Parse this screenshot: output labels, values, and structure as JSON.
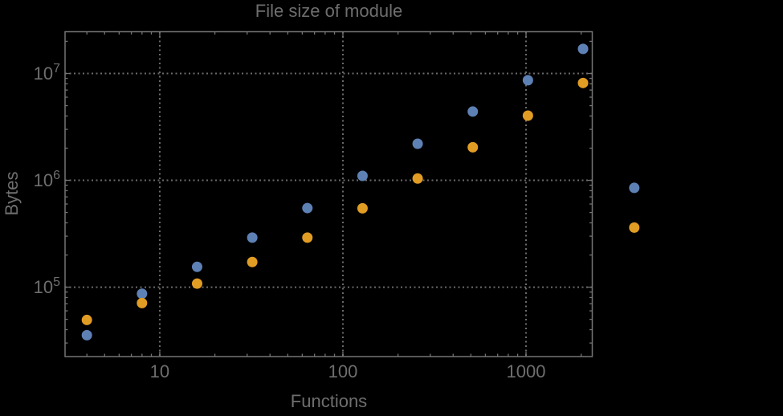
{
  "title": "File size of module",
  "x_axis_label": "Functions",
  "y_axis_label": "Bytes",
  "colors": {
    "background": "#000000",
    "frame": "#747474",
    "grid": "#6b6b6b",
    "text": "#6e6e6e",
    "series_blue": "#5E81B5",
    "series_orange": "#E19C24"
  },
  "chart_data": {
    "type": "scatter",
    "title": "File size of module",
    "xlabel": "Functions",
    "ylabel": "Bytes",
    "x_scale": "log",
    "y_scale": "log",
    "xlim": [
      3.04,
      2300
    ],
    "ylim": [
      22400,
      24600000
    ],
    "grid": "dotted lines at decade majors, both axes",
    "legend": "none",
    "x": [
      4,
      8,
      16,
      32,
      64,
      128,
      256,
      512,
      1024,
      2048,
      3900
    ],
    "series": [
      {
        "name": "blue",
        "color": "#5E81B5",
        "values": [
          35500,
          86800,
          155000,
          291000,
          550000,
          1100000,
          2200000,
          4400000,
          8650000,
          17000000,
          850000
        ]
      },
      {
        "name": "orange",
        "color": "#E19C24",
        "values": [
          49300,
          71000,
          108000,
          172000,
          291000,
          547000,
          1040000,
          2040000,
          4030000,
          8150000,
          361000
        ]
      }
    ],
    "x_ticks": [
      {
        "value": 10,
        "label": "10"
      },
      {
        "value": 100,
        "label": "100"
      },
      {
        "value": 1000,
        "label": "1000"
      }
    ],
    "y_ticks": [
      {
        "value": 100000,
        "base": "10",
        "exp": "5"
      },
      {
        "value": 1000000,
        "base": "10",
        "exp": "6"
      },
      {
        "value": 10000000,
        "base": "10",
        "exp": "7"
      }
    ]
  }
}
